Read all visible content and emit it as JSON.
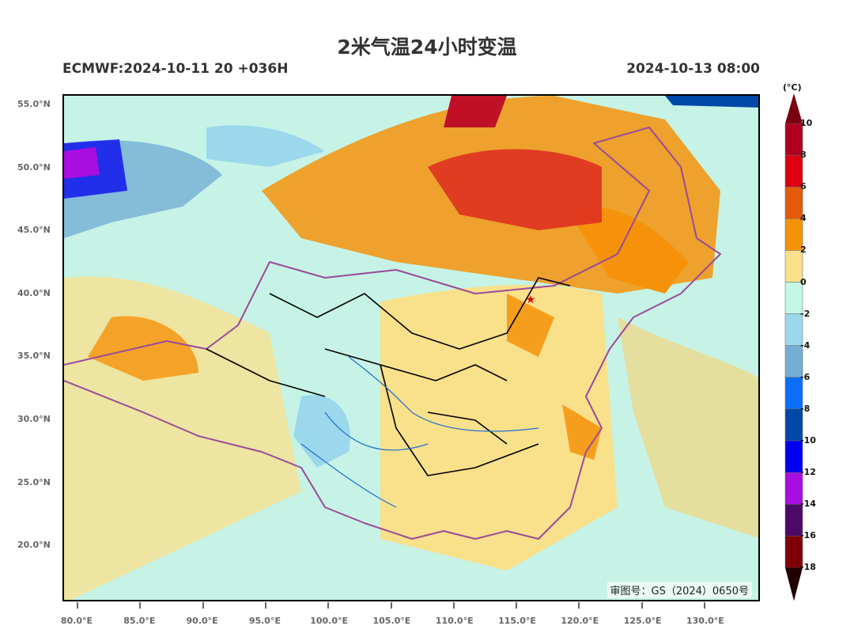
{
  "header": {
    "title": "2米气温24小时变温",
    "model_run": "ECMWF:2024-10-11 20 +036H",
    "valid_time": "2024-10-13 08:00"
  },
  "map": {
    "lat_labels": [
      "55.0°N",
      "50.0°N",
      "45.0°N",
      "40.0°N",
      "35.0°N",
      "30.0°N",
      "25.0°N",
      "20.0°N"
    ],
    "lon_labels": [
      "80.0°E",
      "85.0°E",
      "90.0°E",
      "95.0°E",
      "100.0°E",
      "105.0°E",
      "110.0°E",
      "115.0°E",
      "120.0°E",
      "125.0°E",
      "130.0°E"
    ],
    "approval_number": "审图号：GS（2024）0650号",
    "capital_marker": "red-star-icon"
  },
  "colorbar": {
    "unit": "(°C)",
    "labels": [
      "10",
      "8",
      "6",
      "4",
      "2",
      "0",
      "-2",
      "-4",
      "-6",
      "-8",
      "-10",
      "-12",
      "-14",
      "-16",
      "-18"
    ],
    "colors": [
      "#b00020",
      "#dd0010",
      "#e45a0a",
      "#f5920a",
      "#f9e08a",
      "#c3f7e6",
      "#9cd8ec",
      "#74aed4",
      "#0a6ef8",
      "#0048a8",
      "#0000f0",
      "#a80ee0",
      "#4c0a68",
      "#800008"
    ],
    "top_arrow_color": "#7a0010",
    "bottom_arrow_color": "#200000"
  }
}
